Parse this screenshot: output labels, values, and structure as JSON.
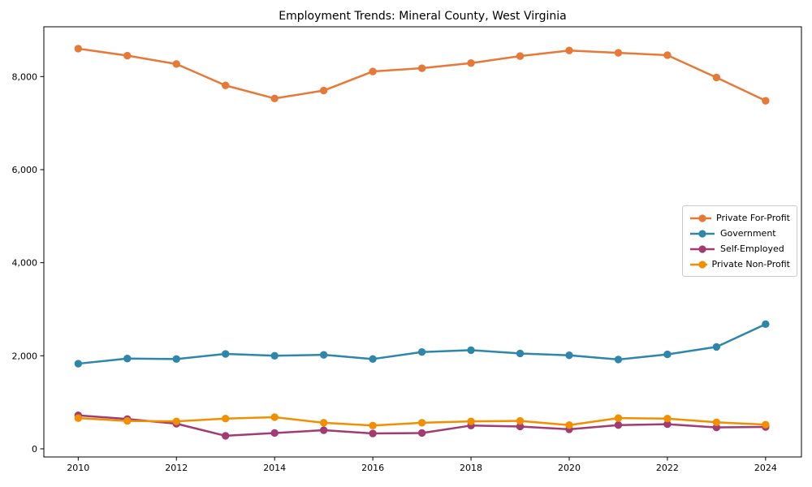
{
  "chart_data": {
    "type": "line",
    "title": "Employment Trends: Mineral County, West Virginia",
    "xlabel": "",
    "ylabel": "",
    "x": [
      2010,
      2011,
      2012,
      2013,
      2014,
      2015,
      2016,
      2017,
      2018,
      2019,
      2020,
      2021,
      2022,
      2023,
      2024
    ],
    "series": [
      {
        "name": "Private For-Profit",
        "color": "#E67937",
        "values": [
          8600,
          8450,
          8270,
          7810,
          7530,
          7700,
          8110,
          8180,
          8290,
          8440,
          8560,
          8510,
          8460,
          7980,
          7480
        ]
      },
      {
        "name": "Government",
        "color": "#2E86AB",
        "values": [
          1830,
          1940,
          1930,
          2040,
          2000,
          2020,
          1930,
          2080,
          2120,
          2050,
          2010,
          1920,
          2030,
          2190,
          2680
        ]
      },
      {
        "name": "Self-Employed",
        "color": "#A23B72",
        "values": [
          720,
          640,
          540,
          280,
          340,
          400,
          330,
          340,
          500,
          480,
          420,
          510,
          530,
          460,
          470
        ]
      },
      {
        "name": "Private Non-Profit",
        "color": "#F18F01",
        "values": [
          660,
          600,
          590,
          650,
          680,
          560,
          500,
          560,
          590,
          600,
          510,
          660,
          650,
          570,
          520
        ]
      }
    ],
    "xlim": [
      2009.3,
      2024.73
    ],
    "ylim": [
      -175,
      9070
    ],
    "xticks": {
      "values": [
        2010,
        2012,
        2014,
        2016,
        2018,
        2020,
        2022,
        2024
      ],
      "labels": [
        "2010",
        "2012",
        "2014",
        "2016",
        "2018",
        "2020",
        "2022",
        "2024"
      ]
    },
    "yticks": {
      "values": [
        0,
        2000,
        4000,
        6000,
        8000
      ],
      "labels": [
        "0",
        "2,000",
        "4,000",
        "6,000",
        "8,000"
      ]
    },
    "grid": false,
    "legend_position": "center right",
    "marker": "circle",
    "line_width": 2.5,
    "marker_radius": 4.7,
    "background_color": "#ffffff",
    "axis_color": "#000000"
  }
}
